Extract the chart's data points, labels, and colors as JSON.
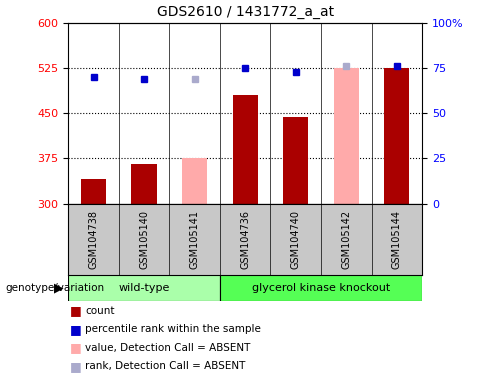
{
  "title": "GDS2610 / 1431772_a_at",
  "samples": [
    "GSM104738",
    "GSM105140",
    "GSM105141",
    "GSM104736",
    "GSM104740",
    "GSM105142",
    "GSM105144"
  ],
  "count_values": [
    340,
    365,
    null,
    480,
    443,
    null,
    525
  ],
  "absent_value_bars": [
    null,
    null,
    375,
    null,
    null,
    525,
    null
  ],
  "percentile_ranks": [
    70,
    69,
    null,
    75,
    73,
    null,
    76
  ],
  "absent_rank_markers": [
    null,
    null,
    69,
    null,
    null,
    76,
    null
  ],
  "ymin": 300,
  "ymax": 600,
  "y_ticks": [
    300,
    375,
    450,
    525,
    600
  ],
  "y2min": 0,
  "y2max": 100,
  "y2_ticks": [
    0,
    25,
    50,
    75,
    100
  ],
  "wild_type_indices": [
    0,
    1,
    2
  ],
  "knockout_indices": [
    3,
    4,
    5,
    6
  ],
  "wild_type_label": "wild-type",
  "knockout_label": "glycerol kinase knockout",
  "genotype_label": "genotype/variation",
  "legend_count_label": "count",
  "legend_rank_label": "percentile rank within the sample",
  "legend_absent_value_label": "value, Detection Call = ABSENT",
  "legend_absent_rank_label": "rank, Detection Call = ABSENT",
  "bar_color_present": "#aa0000",
  "bar_color_absent": "#ffaaaa",
  "dot_color_present": "#0000cc",
  "dot_color_absent": "#aaaacc",
  "wild_type_color": "#aaffaa",
  "knockout_color": "#55ff55",
  "label_bg_color": "#c8c8c8"
}
